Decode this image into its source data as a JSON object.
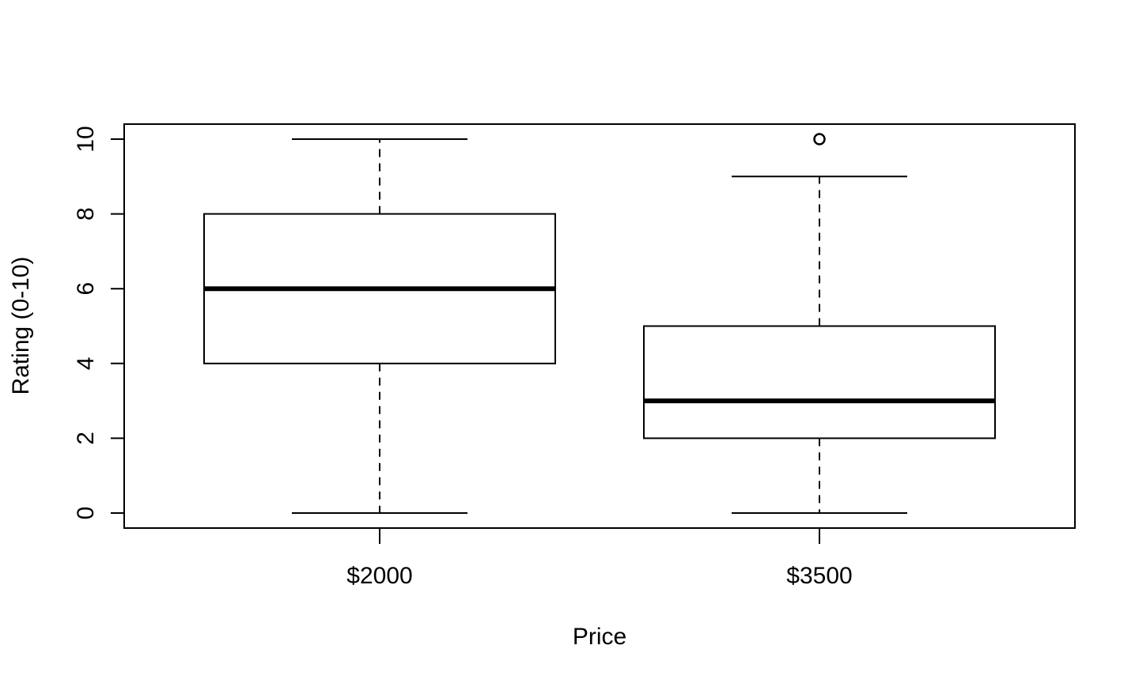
{
  "chart_data": {
    "type": "box",
    "title": "",
    "xlabel": "Price",
    "ylabel": "Rating (0-10)",
    "categories": [
      "$2000",
      "$3500"
    ],
    "ylim": [
      0,
      10
    ],
    "yticks": [
      "0",
      "2",
      "4",
      "6",
      "8",
      "10"
    ],
    "grid": false,
    "boxes": [
      {
        "category": "$2000",
        "whisker_low": 0,
        "q1": 4,
        "median": 6,
        "q3": 8,
        "whisker_high": 10,
        "outliers": []
      },
      {
        "category": "$3500",
        "whisker_low": 0,
        "q1": 2,
        "median": 3,
        "q3": 5,
        "whisker_high": 9,
        "outliers": [
          10
        ]
      }
    ]
  }
}
